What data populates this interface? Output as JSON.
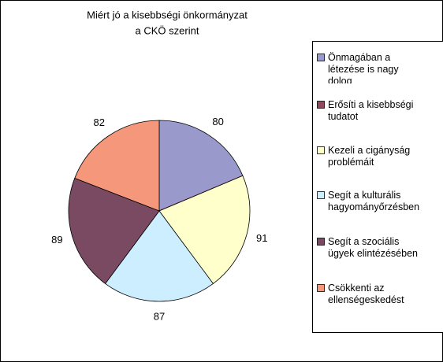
{
  "chart_data": {
    "type": "pie",
    "title": [
      "Miért jó a kisebbségi önkormányzat",
      "a CKÖ szerint"
    ],
    "categories": [
      "Önmagában a létezése is nagy dolog",
      "Erősíti a kisebbségi tudatot",
      "Kezeli a cigányság problémáit",
      "Segít a kulturális hagyományőrzésben",
      "Segít a szociális ügyek elintézésében",
      "Csökkenti az ellenségeskedést"
    ],
    "values": [
      80,
      0,
      91,
      87,
      89,
      82
    ],
    "value_labels": [
      "80",
      null,
      "91",
      "87",
      "89",
      "82"
    ],
    "colors": [
      "#9999cc",
      "#8e4a5c",
      "#ffffcc",
      "#cceeff",
      "#7a4a62",
      "#f4977a"
    ],
    "legend": "right"
  }
}
